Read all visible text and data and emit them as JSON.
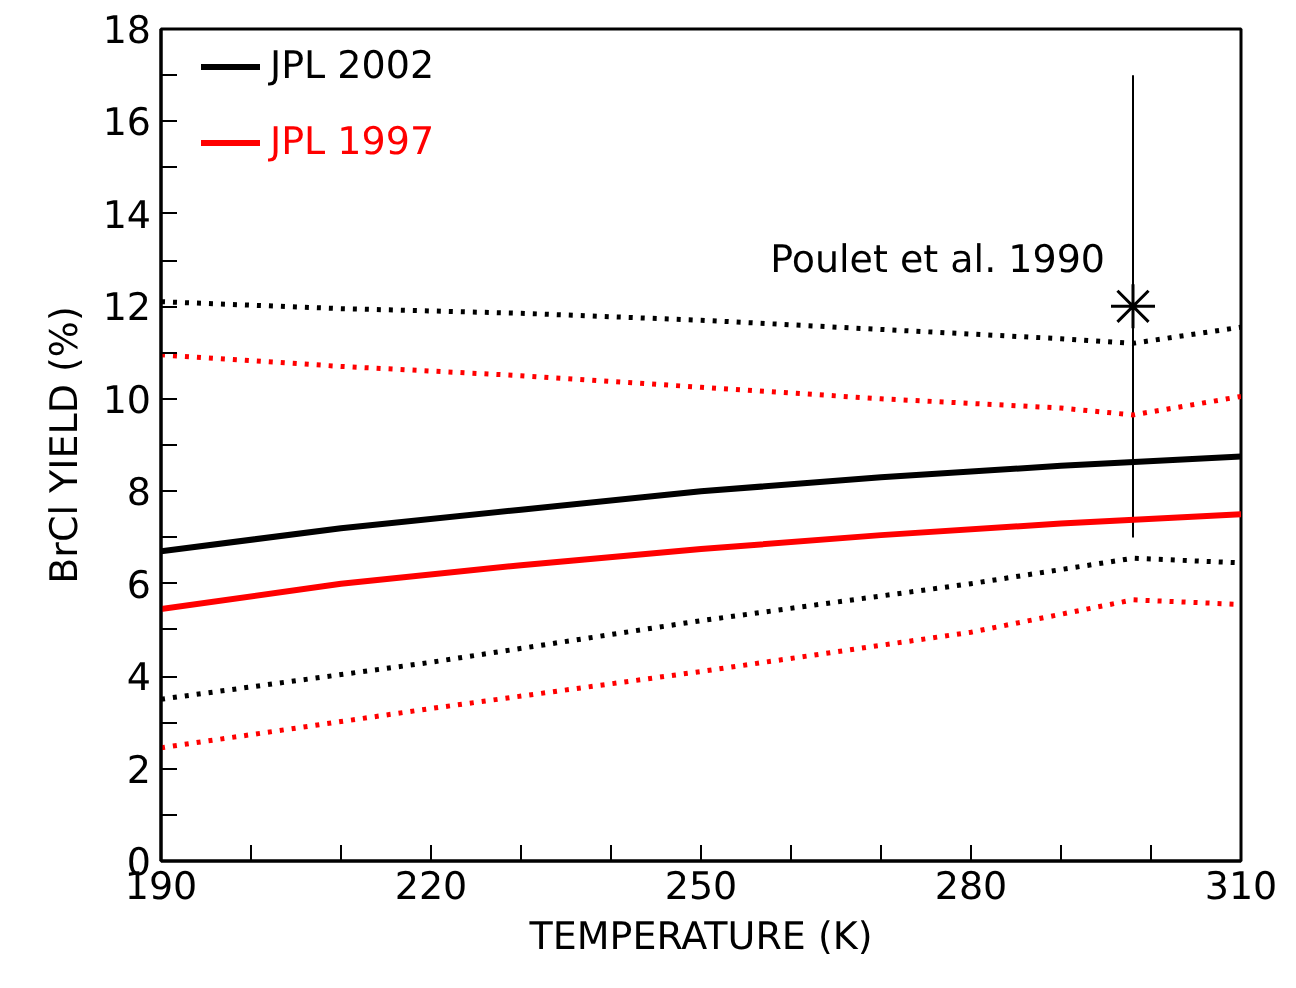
{
  "chart_data": {
    "type": "line",
    "xlabel": "TEMPERATURE (K)",
    "ylabel": "BrCl YIELD (%)",
    "xlim": [
      190,
      310
    ],
    "ylim": [
      0,
      18
    ],
    "xticks": [
      190,
      {
        "value": 200,
        "label": null
      },
      {
        "value": 210,
        "label": null
      },
      220,
      {
        "value": 230,
        "label": null
      },
      {
        "value": 240,
        "label": null
      },
      250,
      {
        "value": 260,
        "label": null
      },
      {
        "value": 270,
        "label": null
      },
      280,
      {
        "value": 290,
        "label": null
      },
      {
        "value": 300,
        "label": null
      },
      310
    ],
    "yticks": [
      0,
      {
        "value": 1,
        "label": null
      },
      2,
      {
        "value": 3,
        "label": null
      },
      4,
      {
        "value": 5,
        "label": null
      },
      6,
      {
        "value": 7,
        "label": null
      },
      8,
      {
        "value": 9,
        "label": null
      },
      10,
      {
        "value": 11,
        "label": null
      },
      12,
      {
        "value": 13,
        "label": null
      },
      14,
      {
        "value": 15,
        "label": null
      },
      16,
      {
        "value": 17,
        "label": null
      },
      18
    ],
    "grid": false,
    "legend": "top left",
    "marker": "none",
    "series": [
      {
        "name": "JPL 2002",
        "color": "#000000",
        "line_style": "solid",
        "x": [
          190,
          210,
          230,
          250,
          270,
          290,
          310
        ],
        "values": [
          6.7,
          7.2,
          7.6,
          8.0,
          8.3,
          8.55,
          8.75
        ]
      },
      {
        "name": "JPL 1997",
        "color": "#ff0000",
        "line_style": "solid",
        "x": [
          190,
          210,
          230,
          250,
          270,
          290,
          310
        ],
        "values": [
          5.45,
          6.0,
          6.4,
          6.75,
          7.05,
          7.3,
          7.5
        ]
      },
      {
        "color": "#000000",
        "line_style": "dotted",
        "x": [
          190,
          210,
          230,
          250,
          270,
          290,
          298,
          310
        ],
        "values": [
          12.1,
          11.95,
          11.85,
          11.7,
          11.5,
          11.3,
          11.2,
          11.55
        ]
      },
      {
        "color": "#ff0000",
        "line_style": "dotted",
        "x": [
          190,
          210,
          230,
          250,
          270,
          290,
          298,
          310
        ],
        "values": [
          10.95,
          10.7,
          10.5,
          10.25,
          10.0,
          9.8,
          9.65,
          10.05
        ]
      },
      {
        "color": "#000000",
        "line_style": "dotted",
        "x": [
          190,
          220,
          250,
          280,
          298,
          310
        ],
        "values": [
          3.5,
          4.3,
          5.2,
          6.0,
          6.55,
          6.45
        ]
      },
      {
        "color": "#ff0000",
        "line_style": "dotted",
        "x": [
          190,
          220,
          250,
          280,
          298,
          310
        ],
        "values": [
          2.45,
          3.3,
          4.1,
          4.95,
          5.65,
          5.55
        ]
      },
      {
        "name": "Poulet et al. 1990",
        "type": "scatter",
        "marker": "cross",
        "color": "#000000",
        "x": [
          298
        ],
        "values": [
          12
        ],
        "errors": [
          5
        ]
      }
    ]
  }
}
